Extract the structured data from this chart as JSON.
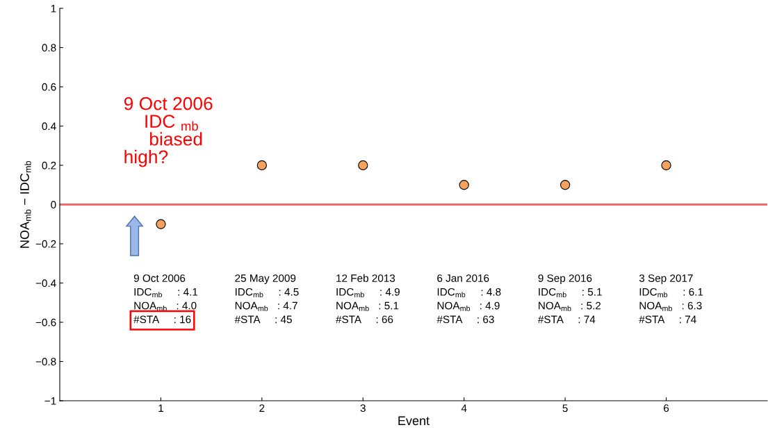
{
  "chart_data": {
    "type": "scatter",
    "xlabel": "Event",
    "ylabel": "NOA$_{mb}$ − IDC$_{mb}$",
    "x": [
      1,
      2,
      3,
      4,
      5,
      6
    ],
    "series": [
      {
        "color": "#f4a25e",
        "values": [
          -0.1,
          0.2,
          0.2,
          0.1,
          0.1,
          0.2
        ]
      }
    ],
    "marker": "circle",
    "grid": false,
    "xlim": [
      0,
      7
    ],
    "ylim": [
      -1,
      1
    ],
    "xticks": [
      1,
      2,
      3,
      4,
      5,
      6
    ],
    "yticks": [
      -1,
      -0.8,
      -0.6,
      -0.4,
      -0.2,
      0,
      0.2,
      0.4,
      0.6,
      0.8,
      1
    ],
    "ref_lines": [
      {
        "axis": "y",
        "value": 0,
        "color": "#f06a6a"
      }
    ],
    "annotations": [
      "9 Oct 2006\nIDC$_{mb}$     : 4.1\nNOA$_{mb}$   : 4.0\n#STA     : 16",
      "25 May 2009\nIDC$_{mb}$     : 4.5\nNOA$_{mb}$   : 4.7\n#STA     : 45",
      "12 Feb 2013\nIDC$_{mb}$     : 4.9\nNOA$_{mb}$   : 5.1\n#STA     : 66",
      "6 Jan 2016\nIDC$_{mb}$     : 4.8\nNOA$_{mb}$   : 4.9\n#STA     : 63",
      "9 Sep 2016\nIDC$_{mb}$     : 5.1\nNOA$_{mb}$   : 5.2\n#STA     : 74",
      "3 Sep 2017\nIDC$_{mb}$     : 6.1\nNOA$_{mb}$   : 6.3\n#STA     : 74",
      "9 Oct 2006\n    IDC $_{mb}$\n     biased\nhigh?"
    ]
  }
}
